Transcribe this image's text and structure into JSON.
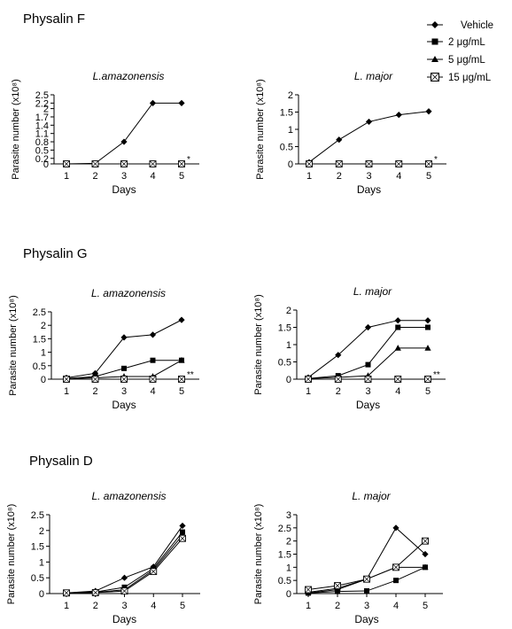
{
  "legend": {
    "entries": [
      {
        "label": "Vehicle",
        "marker": "diamond"
      },
      {
        "label": "2 μg/mL",
        "marker": "square"
      },
      {
        "label": "5 μg/mL",
        "marker": "triangle"
      },
      {
        "label": "15 μg/mL",
        "marker": "crossed-square"
      }
    ]
  },
  "sections": [
    {
      "title": "Physalin F"
    },
    {
      "title": "Physalin G"
    },
    {
      "title": "Physalin D"
    }
  ],
  "chart_data": [
    {
      "type": "line",
      "section": "Physalin F",
      "title": "L.amazonensis",
      "xlabel": "Days",
      "ylabel": "Parasite number (x10⁸)",
      "x": [
        1,
        2,
        3,
        4,
        5
      ],
      "ylim": [
        0,
        2.5
      ],
      "yticks": [
        0,
        0.2,
        0.5,
        0.8,
        1.1,
        1.4,
        1.7,
        2,
        2.2,
        2.5
      ],
      "ytick_labels": [
        "0",
        "0.2",
        "0.5",
        "0.8",
        "1.1",
        "1.4",
        "1.7",
        "2",
        "2.2",
        "2.5"
      ],
      "annotation": "*",
      "series": [
        {
          "name": "Vehicle",
          "values": [
            0,
            0.02,
            0.8,
            2.2,
            2.2
          ]
        },
        {
          "name": "2 μg/mL",
          "values": [
            0,
            0,
            0,
            0,
            0
          ]
        },
        {
          "name": "5 μg/mL",
          "values": [
            0,
            0,
            0,
            0,
            0
          ]
        },
        {
          "name": "15 μg/mL",
          "values": [
            0,
            0,
            0,
            0,
            0
          ]
        }
      ]
    },
    {
      "type": "line",
      "section": "Physalin F",
      "title": "L. major",
      "xlabel": "Days",
      "ylabel": "Parasite number (x10⁸)",
      "x": [
        1,
        2,
        3,
        4,
        5
      ],
      "ylim": [
        0,
        2
      ],
      "yticks": [
        0,
        0.5,
        1,
        1.5,
        2
      ],
      "ytick_labels": [
        "0",
        "0.5",
        "1",
        "1.5",
        "2"
      ],
      "annotation": "*",
      "series": [
        {
          "name": "Vehicle",
          "values": [
            0.05,
            0.7,
            1.22,
            1.42,
            1.52
          ]
        },
        {
          "name": "2 μg/mL",
          "values": [
            0,
            0,
            0,
            0,
            0
          ]
        },
        {
          "name": "5 μg/mL",
          "values": [
            0,
            0,
            0,
            0,
            0
          ]
        },
        {
          "name": "15 μg/mL",
          "values": [
            0,
            0,
            0,
            0,
            0
          ]
        }
      ]
    },
    {
      "type": "line",
      "section": "Physalin G",
      "title": "L. amazonensis",
      "xlabel": "Days",
      "ylabel": "Parasite number (x10⁸)",
      "x": [
        1,
        2,
        3,
        4,
        5
      ],
      "ylim": [
        0,
        2.5
      ],
      "yticks": [
        0,
        0.5,
        1,
        1.5,
        2,
        2.5
      ],
      "ytick_labels": [
        "0",
        "0.5",
        "1",
        "1.5",
        "2",
        "2.5"
      ],
      "annotation": "**",
      "series": [
        {
          "name": "Vehicle",
          "values": [
            0.05,
            0.22,
            1.55,
            1.65,
            2.2
          ]
        },
        {
          "name": "2 μg/mL",
          "values": [
            0.02,
            0.1,
            0.4,
            0.7,
            0.7
          ]
        },
        {
          "name": "5 μg/mL",
          "values": [
            0.02,
            0.05,
            0.1,
            0.1,
            0.7
          ]
        },
        {
          "name": "15 μg/mL",
          "values": [
            0,
            0,
            0,
            0,
            0
          ]
        }
      ]
    },
    {
      "type": "line",
      "section": "Physalin G",
      "title": "L. major",
      "xlabel": "Days",
      "ylabel": "Parasite number (x10⁸)",
      "x": [
        1,
        2,
        3,
        4,
        5
      ],
      "ylim": [
        0,
        2
      ],
      "yticks": [
        0,
        0.5,
        1,
        1.5,
        2
      ],
      "ytick_labels": [
        "0",
        "0.5",
        "1",
        "1.5",
        "2"
      ],
      "annotation": "**",
      "series": [
        {
          "name": "Vehicle",
          "values": [
            0.05,
            0.7,
            1.5,
            1.7,
            1.7
          ]
        },
        {
          "name": "2 μg/mL",
          "values": [
            0.02,
            0.1,
            0.42,
            1.5,
            1.5
          ]
        },
        {
          "name": "5 μg/mL",
          "values": [
            0.02,
            0.05,
            0.1,
            0.9,
            0.9
          ]
        },
        {
          "name": "15 μg/mL",
          "values": [
            0,
            0,
            0,
            0,
            0
          ]
        }
      ]
    },
    {
      "type": "line",
      "section": "Physalin D",
      "title": "L. amazonensis",
      "xlabel": "Days",
      "ylabel": "Parasite number (x10⁸)",
      "x": [
        1,
        2,
        3,
        4,
        5
      ],
      "ylim": [
        0,
        2.5
      ],
      "yticks": [
        0,
        0.5,
        1,
        1.5,
        2,
        2.5
      ],
      "ytick_labels": [
        "0",
        "0.5",
        "1",
        "1.5",
        "2",
        "2.5"
      ],
      "series": [
        {
          "name": "Vehicle",
          "values": [
            0.02,
            0.08,
            0.5,
            0.85,
            2.15
          ]
        },
        {
          "name": "2 μg/mL",
          "values": [
            0.02,
            0.05,
            0.2,
            0.8,
            1.95
          ]
        },
        {
          "name": "5 μg/mL",
          "values": [
            0.02,
            0.04,
            0.12,
            0.75,
            1.85
          ]
        },
        {
          "name": "15 μg/mL",
          "values": [
            0.02,
            0.03,
            0.08,
            0.7,
            1.75
          ]
        }
      ]
    },
    {
      "type": "line",
      "section": "Physalin D",
      "title": "L. major",
      "xlabel": "Days",
      "ylabel": "Parasite number (x10⁸)",
      "x": [
        1,
        2,
        3,
        4,
        5
      ],
      "ylim": [
        0,
        3
      ],
      "yticks": [
        0,
        0.5,
        1,
        1.5,
        2,
        2.5,
        3
      ],
      "ytick_labels": [
        "0",
        "0.5",
        "1",
        "1.5",
        "2",
        "2.5",
        "3"
      ],
      "series": [
        {
          "name": "Vehicle",
          "values": [
            0.02,
            0.15,
            0.55,
            2.5,
            1.5
          ]
        },
        {
          "name": "2 μg/mL",
          "values": [
            0.02,
            0.08,
            0.1,
            0.5,
            1.0
          ]
        },
        {
          "name": "5 μg/mL",
          "values": [
            0.05,
            0.2,
            0.55,
            1.0,
            1.0
          ]
        },
        {
          "name": "15 μg/mL",
          "values": [
            0.15,
            0.3,
            0.55,
            1.0,
            2.0
          ]
        }
      ]
    }
  ]
}
